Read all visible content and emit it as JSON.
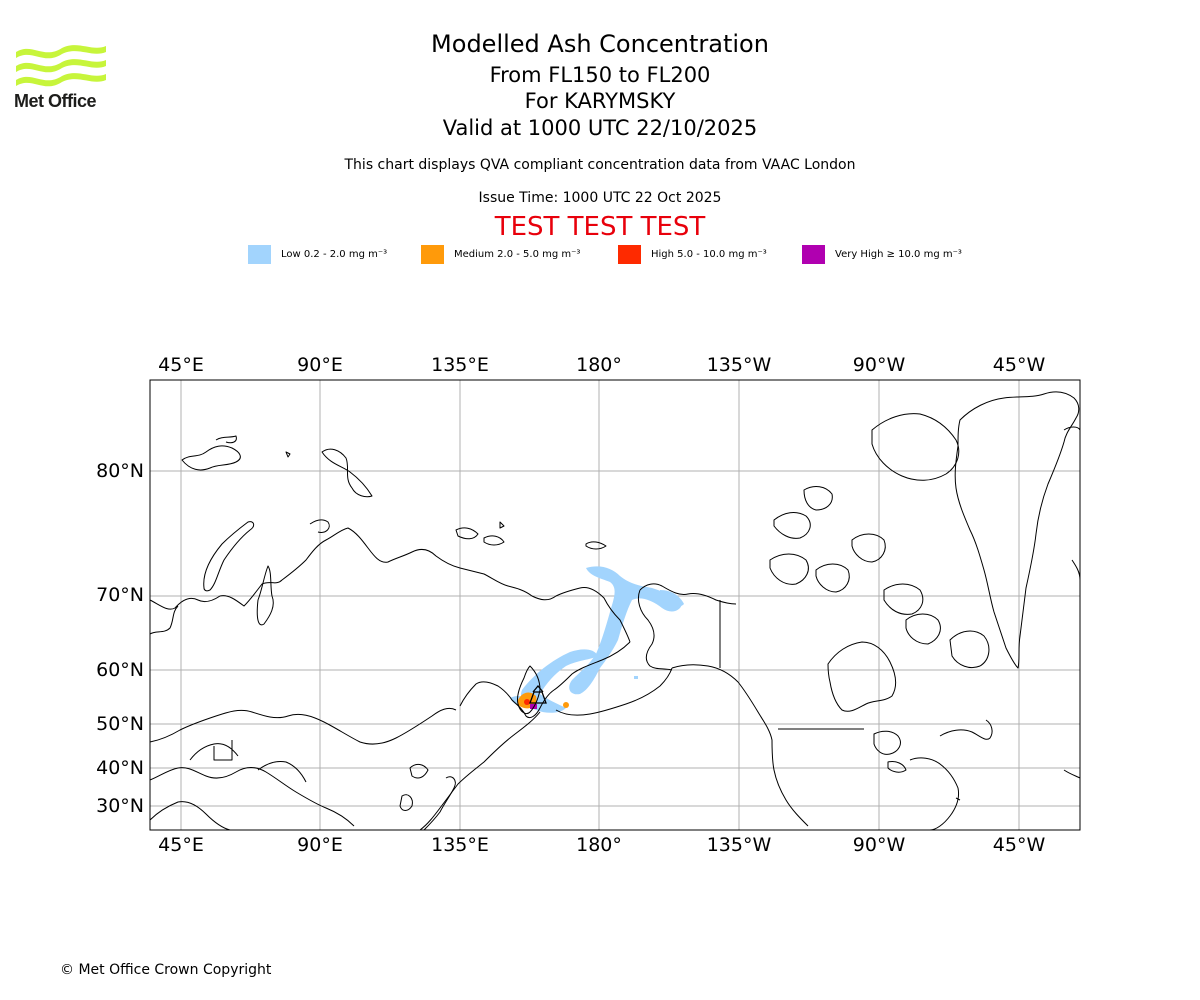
{
  "logo": {
    "text": "Met Office",
    "color": "#c7f53b",
    "icon": "met-office-wave-logo"
  },
  "title": {
    "main": "Modelled Ash Concentration",
    "levels": "From FL150 to FL200",
    "volcano": "For KARYMSKY",
    "valid": "Valid at 1000 UTC 22/10/2025"
  },
  "subtitle": "This chart displays QVA compliant concentration data from VAAC London",
  "issue_time": "Issue Time: 1000 UTC 22 Oct 2025",
  "test_banner": "TEST TEST TEST",
  "legend": [
    {
      "label": "Low 0.2 - 2.0 mg m⁻³",
      "color": "#a2d4fd"
    },
    {
      "label": "Medium 2.0 - 5.0 mg m⁻³",
      "color": "#ff9a0a"
    },
    {
      "label": "High 5.0 - 10.0 mg m⁻³",
      "color": "#fe2a00"
    },
    {
      "label": "Very High ≥ 10.0 mg m⁻³",
      "color": "#b000b0"
    }
  ],
  "map": {
    "lon_labels": [
      "45°E",
      "90°E",
      "135°E",
      "180°",
      "135°W",
      "90°W",
      "45°W"
    ],
    "lat_labels": [
      "80°N",
      "70°N",
      "60°N",
      "50°N",
      "40°N",
      "30°N"
    ],
    "gridline_color": "#b0b0b0"
  },
  "copyright": "© Met Office Crown Copyright"
}
